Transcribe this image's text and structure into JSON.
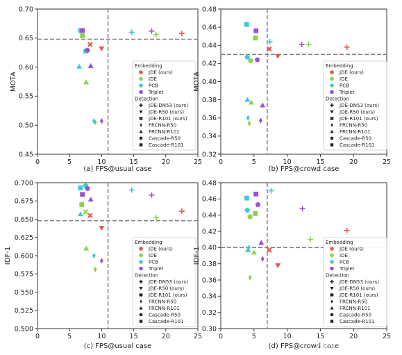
{
  "chart_data": [
    {
      "type": "scatter",
      "caption": "(a) FPS@usual case",
      "ylabel": "MOTA",
      "xlim": [
        0,
        25
      ],
      "ylim": [
        0.45,
        0.7
      ],
      "xticks": [
        "0",
        "5",
        "10",
        "15",
        "20",
        "25"
      ],
      "yticks": [
        "0.45",
        "0.50",
        "0.55",
        "0.60",
        "0.65",
        "0.70"
      ],
      "ref_x": 11.0,
      "ref_y": 0.648,
      "points": [
        {
          "emb": "JDE (ours)",
          "det": "JDE-DN53 (ours)",
          "x": 22.5,
          "y": 0.658
        },
        {
          "emb": "JDE (ours)",
          "det": "JDE-R50 (ours)",
          "x": 10.0,
          "y": 0.632
        },
        {
          "emb": "JDE (ours)",
          "det": "JDE-R101 (ours)",
          "x": 8.2,
          "y": 0.639
        },
        {
          "emb": "IDE",
          "det": "JDE-DN53 (ours)",
          "x": 18.5,
          "y": 0.656
        },
        {
          "emb": "IDE",
          "det": "FRCNN-R101",
          "x": 7.6,
          "y": 0.574
        },
        {
          "emb": "IDE",
          "det": "Cascade-R101",
          "x": 7.0,
          "y": 0.654
        },
        {
          "emb": "IDE",
          "det": "JDE-R101 (ours)",
          "x": 7.5,
          "y": 0.627
        },
        {
          "emb": "IDE",
          "det": "FRCNN-R50",
          "x": 9.0,
          "y": 0.505
        },
        {
          "emb": "PCB",
          "det": "JDE-DN53 (ours)",
          "x": 14.7,
          "y": 0.66
        },
        {
          "emb": "PCB",
          "det": "FRCNN-R101",
          "x": 6.5,
          "y": 0.601
        },
        {
          "emb": "PCB",
          "det": "Cascade-R50",
          "x": 7.5,
          "y": 0.628
        },
        {
          "emb": "PCB",
          "det": "Cascade-R101",
          "x": 6.7,
          "y": 0.663
        },
        {
          "emb": "PCB",
          "det": "FRCNN-R50",
          "x": 8.8,
          "y": 0.507
        },
        {
          "emb": "Triplet",
          "det": "JDE-DN53 (ours)",
          "x": 17.8,
          "y": 0.662
        },
        {
          "emb": "Triplet",
          "det": "FRCNN-R101",
          "x": 8.3,
          "y": 0.602
        },
        {
          "emb": "Triplet",
          "det": "Cascade-R50",
          "x": 7.8,
          "y": 0.629
        },
        {
          "emb": "Triplet",
          "det": "Cascade-R101",
          "x": 7.0,
          "y": 0.663
        },
        {
          "emb": "Triplet",
          "det": "FRCNN-R50",
          "x": 10.0,
          "y": 0.507
        }
      ]
    },
    {
      "type": "scatter",
      "caption": "(b) FPS@crowd case",
      "ylabel": "MOTA",
      "xlim": [
        0,
        25
      ],
      "ylim": [
        0.32,
        0.48
      ],
      "xticks": [
        "0",
        "5",
        "10",
        "15",
        "20",
        "25"
      ],
      "yticks": [
        "0.32",
        "0.34",
        "0.36",
        "0.38",
        "0.40",
        "0.42",
        "0.44",
        "0.46",
        "0.48"
      ],
      "ref_x": 7.0,
      "ref_y": 0.43,
      "points": [
        {
          "emb": "JDE (ours)",
          "det": "JDE-DN53 (ours)",
          "x": 19.0,
          "y": 0.438
        },
        {
          "emb": "JDE (ours)",
          "det": "JDE-R50 (ours)",
          "x": 8.6,
          "y": 0.428
        },
        {
          "emb": "JDE (ours)",
          "det": "JDE-R101 (ours)",
          "x": 7.3,
          "y": 0.436
        },
        {
          "emb": "IDE",
          "det": "JDE-DN53 (ours)",
          "x": 13.2,
          "y": 0.441
        },
        {
          "emb": "IDE",
          "det": "Cascade-R101",
          "x": 5.2,
          "y": 0.448
        },
        {
          "emb": "IDE",
          "det": "FRCNN-R101",
          "x": 4.6,
          "y": 0.377
        },
        {
          "emb": "IDE",
          "det": "FRCNN-R50",
          "x": 4.3,
          "y": 0.354
        },
        {
          "emb": "IDE",
          "det": "Cascade-R50",
          "x": 4.5,
          "y": 0.423
        },
        {
          "emb": "PCB",
          "det": "JDE-DN53 (ours)",
          "x": 7.4,
          "y": 0.444
        },
        {
          "emb": "PCB",
          "det": "Cascade-R101",
          "x": 3.9,
          "y": 0.463
        },
        {
          "emb": "PCB",
          "det": "Cascade-R50",
          "x": 4.0,
          "y": 0.427
        },
        {
          "emb": "PCB",
          "det": "FRCNN-R101",
          "x": 4.0,
          "y": 0.38
        },
        {
          "emb": "PCB",
          "det": "FRCNN-R50",
          "x": 4.1,
          "y": 0.36
        },
        {
          "emb": "Triplet",
          "det": "JDE-DN53 (ours)",
          "x": 12.2,
          "y": 0.441
        },
        {
          "emb": "Triplet",
          "det": "Cascade-R101",
          "x": 5.3,
          "y": 0.456
        },
        {
          "emb": "Triplet",
          "det": "Cascade-R50",
          "x": 5.5,
          "y": 0.424
        },
        {
          "emb": "Triplet",
          "det": "FRCNN-R101",
          "x": 6.3,
          "y": 0.374
        },
        {
          "emb": "Triplet",
          "det": "FRCNN-R50",
          "x": 6.0,
          "y": 0.357
        }
      ]
    },
    {
      "type": "scatter",
      "caption": "(c) FPS@usual case",
      "ylabel": "IDF-1",
      "xlim": [
        0,
        25
      ],
      "ylim": [
        0.5,
        0.7
      ],
      "xticks": [
        "0",
        "5",
        "10",
        "15",
        "20",
        "25"
      ],
      "yticks": [
        "0.500",
        "0.525",
        "0.550",
        "0.575",
        "0.600",
        "0.625",
        "0.650",
        "0.675",
        "0.700"
      ],
      "ref_x": 11.0,
      "ref_y": 0.648,
      "points": [
        {
          "emb": "JDE (ours)",
          "det": "JDE-DN53 (ours)",
          "x": 22.5,
          "y": 0.661
        },
        {
          "emb": "JDE (ours)",
          "det": "JDE-R50 (ours)",
          "x": 10.0,
          "y": 0.638
        },
        {
          "emb": "JDE (ours)",
          "det": "JDE-R101 (ours)",
          "x": 8.2,
          "y": 0.655
        },
        {
          "emb": "IDE",
          "det": "JDE-DN53 (ours)",
          "x": 18.5,
          "y": 0.652
        },
        {
          "emb": "IDE",
          "det": "FRCNN-R101",
          "x": 7.6,
          "y": 0.61
        },
        {
          "emb": "IDE",
          "det": "Cascade-R101",
          "x": 6.9,
          "y": 0.67
        },
        {
          "emb": "IDE",
          "det": "JDE-R101 (ours)",
          "x": 7.5,
          "y": 0.66
        },
        {
          "emb": "IDE",
          "det": "FRCNN-R50",
          "x": 9.0,
          "y": 0.581
        },
        {
          "emb": "PCB",
          "det": "JDE-DN53 (ours)",
          "x": 14.7,
          "y": 0.69
        },
        {
          "emb": "PCB",
          "det": "FRCNN-R101",
          "x": 6.7,
          "y": 0.657
        },
        {
          "emb": "PCB",
          "det": "Cascade-R50",
          "x": 7.5,
          "y": 0.696
        },
        {
          "emb": "PCB",
          "det": "Cascade-R101",
          "x": 6.7,
          "y": 0.693
        },
        {
          "emb": "PCB",
          "det": "FRCNN-R50",
          "x": 8.8,
          "y": 0.6
        },
        {
          "emb": "Triplet",
          "det": "JDE-DN53 (ours)",
          "x": 17.8,
          "y": 0.683
        },
        {
          "emb": "Triplet",
          "det": "FRCNN-R101",
          "x": 8.3,
          "y": 0.677
        },
        {
          "emb": "Triplet",
          "det": "Cascade-R50",
          "x": 7.8,
          "y": 0.692
        },
        {
          "emb": "Triplet",
          "det": "Cascade-R101",
          "x": 7.0,
          "y": 0.684
        },
        {
          "emb": "Triplet",
          "det": "FRCNN-R50",
          "x": 10.0,
          "y": 0.593
        }
      ]
    },
    {
      "type": "scatter",
      "caption": "(d) FPS@crowd case",
      "ylabel": "IDF-1",
      "xlim": [
        0,
        25
      ],
      "ylim": [
        0.3,
        0.48
      ],
      "xticks": [
        "0",
        "5",
        "10",
        "15",
        "20",
        "25"
      ],
      "yticks": [
        "0.30",
        "0.32",
        "0.34",
        "0.36",
        "0.38",
        "0.40",
        "0.42",
        "0.44",
        "0.46",
        "0.48"
      ],
      "ref_x": 7.0,
      "ref_y": 0.4,
      "points": [
        {
          "emb": "JDE (ours)",
          "det": "JDE-DN53 (ours)",
          "x": 19.0,
          "y": 0.421
        },
        {
          "emb": "JDE (ours)",
          "det": "JDE-R50 (ours)",
          "x": 8.6,
          "y": 0.378
        },
        {
          "emb": "JDE (ours)",
          "det": "JDE-R101 (ours)",
          "x": 7.3,
          "y": 0.397
        },
        {
          "emb": "IDE",
          "det": "JDE-DN53 (ours)",
          "x": 13.5,
          "y": 0.41
        },
        {
          "emb": "IDE",
          "det": "Cascade-R101",
          "x": 5.2,
          "y": 0.442
        },
        {
          "emb": "IDE",
          "det": "Cascade-R50",
          "x": 4.4,
          "y": 0.438
        },
        {
          "emb": "IDE",
          "det": "FRCNN-R101",
          "x": 5.0,
          "y": 0.394
        },
        {
          "emb": "IDE",
          "det": "FRCNN-R50",
          "x": 4.4,
          "y": 0.363
        },
        {
          "emb": "PCB",
          "det": "JDE-DN53 (ours)",
          "x": 7.6,
          "y": 0.47
        },
        {
          "emb": "PCB",
          "det": "Cascade-R101",
          "x": 3.9,
          "y": 0.461
        },
        {
          "emb": "PCB",
          "det": "Cascade-R50",
          "x": 4.0,
          "y": 0.446
        },
        {
          "emb": "PCB",
          "det": "FRCNN-R101",
          "x": 4.1,
          "y": 0.397
        },
        {
          "emb": "PCB",
          "det": "FRCNN-R50",
          "x": 4.2,
          "y": 0.4
        },
        {
          "emb": "Triplet",
          "det": "JDE-DN53 (ours)",
          "x": 12.3,
          "y": 0.448
        },
        {
          "emb": "Triplet",
          "det": "Cascade-R101",
          "x": 5.3,
          "y": 0.466
        },
        {
          "emb": "Triplet",
          "det": "Cascade-R50",
          "x": 5.6,
          "y": 0.453
        },
        {
          "emb": "Triplet",
          "det": "FRCNN-R101",
          "x": 6.1,
          "y": 0.406
        },
        {
          "emb": "Triplet",
          "det": "FRCNN-R50",
          "x": 6.3,
          "y": 0.386
        }
      ]
    }
  ],
  "legend": {
    "embedding_title": "Embedding",
    "embeddings": [
      {
        "name": "JDE (ours)",
        "color": "#e05a50"
      },
      {
        "name": "IDE",
        "color": "#8ed04a"
      },
      {
        "name": "PCB",
        "color": "#3cc8d6"
      },
      {
        "name": "Triplet",
        "color": "#9a4fd6"
      }
    ],
    "detection_title": "Detection",
    "detections": [
      {
        "name": "JDE-DN53 (ours)",
        "marker": "plus"
      },
      {
        "name": "JDE-R50 (ours)",
        "marker": "triangle-down"
      },
      {
        "name": "JDE-R101 (ours)",
        "marker": "x"
      },
      {
        "name": "FRCNN-R50",
        "marker": "diamond"
      },
      {
        "name": "FRCNN-R101",
        "marker": "triangle-up"
      },
      {
        "name": "Cascade-R50",
        "marker": "pentagon"
      },
      {
        "name": "Cascade-R101",
        "marker": "square"
      }
    ]
  },
  "legend_placement": "lower-right",
  "ref_line_color": "#808080",
  "watermark": "CSDN @就是没有不重的名么"
}
